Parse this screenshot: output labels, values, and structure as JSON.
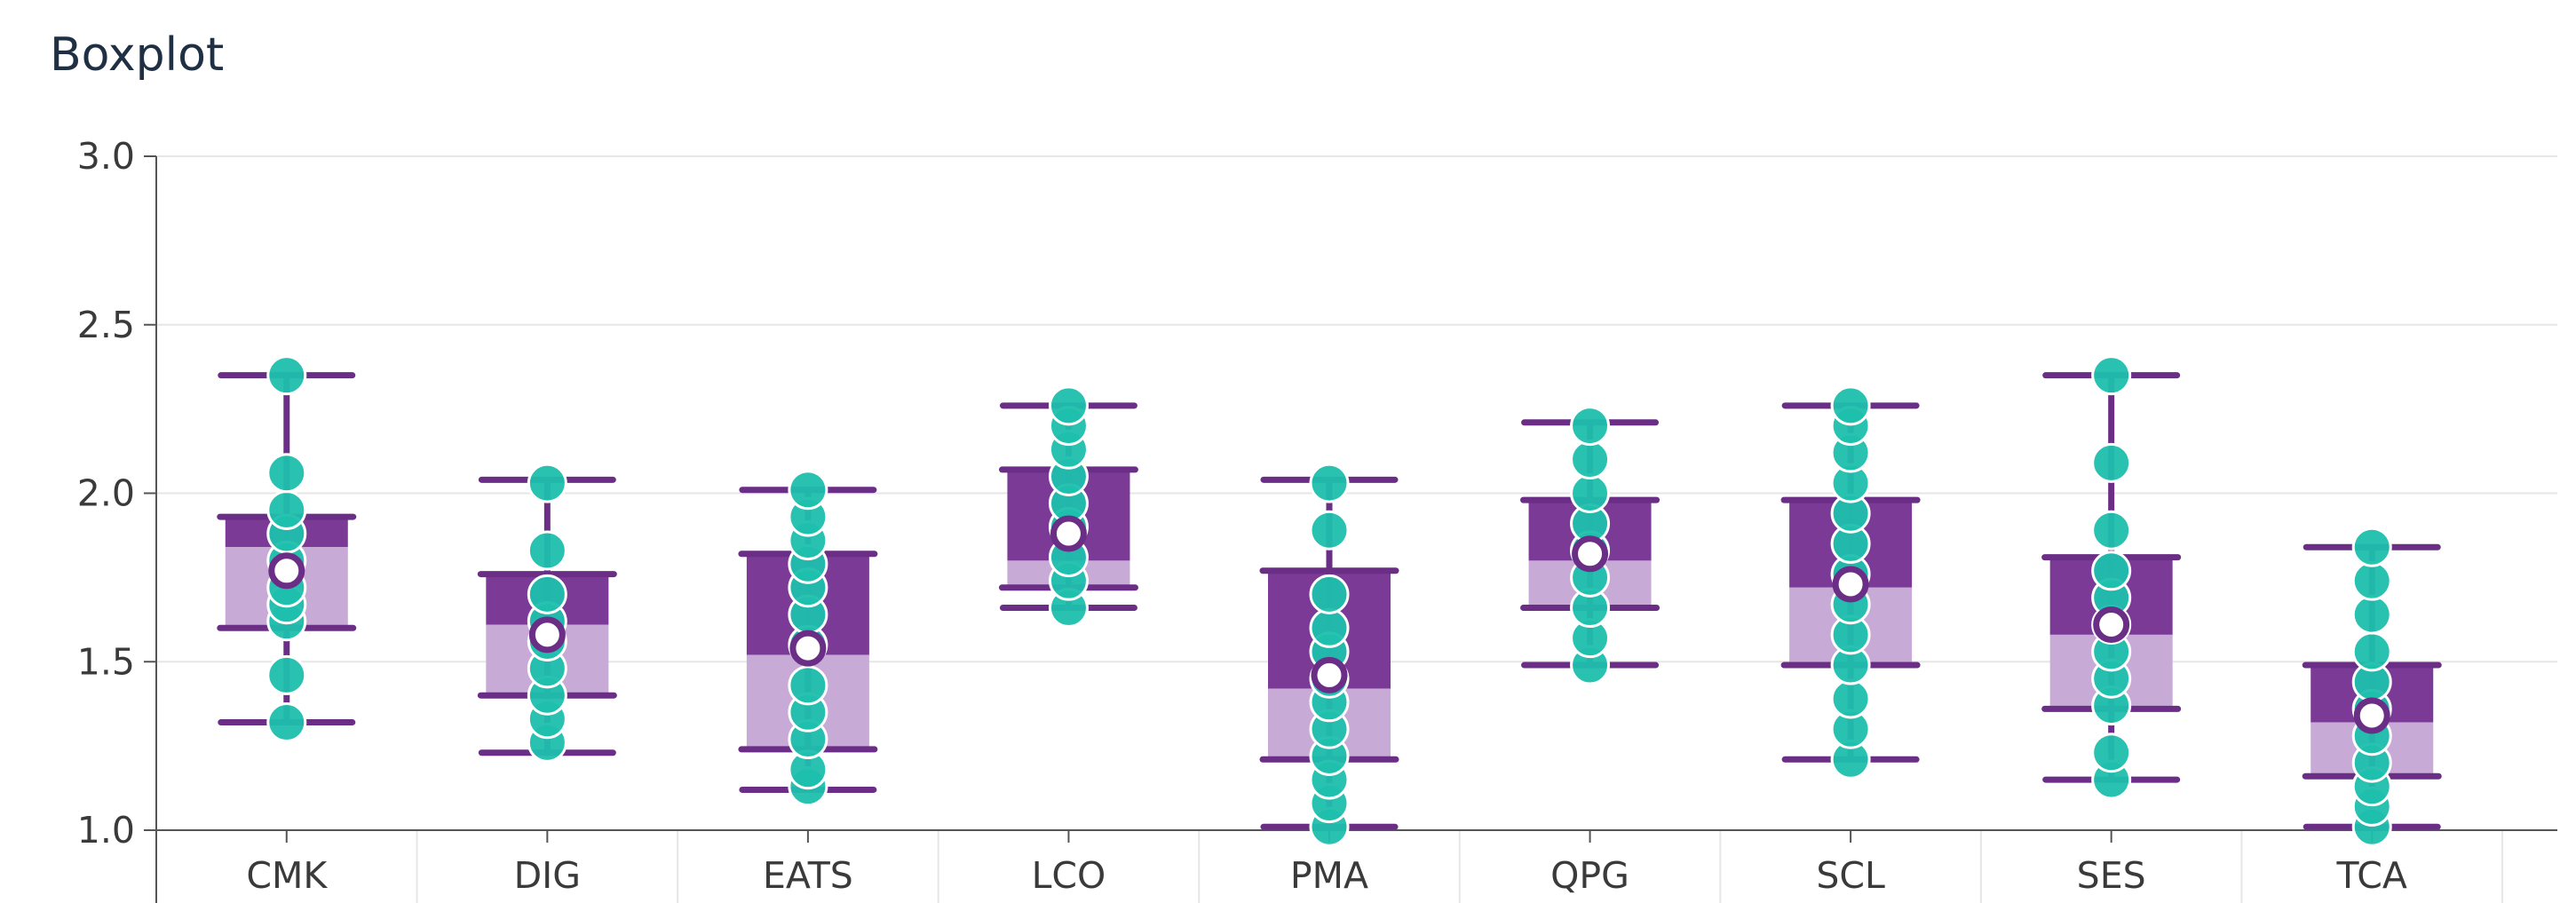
{
  "chart_data": {
    "type": "boxplot",
    "title": "Boxplot",
    "xlabel": "",
    "ylabel": "",
    "ylim": [
      1.0,
      3.0
    ],
    "yticks": [
      "1.0",
      "1.5",
      "2.0",
      "2.5",
      "3.0"
    ],
    "grid": true,
    "categories": [
      "CMK",
      "DIG",
      "EATS",
      "LCO",
      "PMA",
      "QPG",
      "SCL",
      "SES",
      "TCA"
    ],
    "boxes": [
      {
        "category": "CMK",
        "min": 1.32,
        "q1": 1.6,
        "median": 1.84,
        "q3": 1.93,
        "max": 2.35,
        "mean": 1.77,
        "points": [
          1.32,
          1.46,
          1.62,
          1.67,
          1.72,
          1.8,
          1.88,
          1.95,
          2.06,
          2.35
        ]
      },
      {
        "category": "DIG",
        "min": 1.23,
        "q1": 1.4,
        "median": 1.61,
        "q3": 1.76,
        "max": 2.04,
        "mean": 1.58,
        "points": [
          1.26,
          1.33,
          1.4,
          1.48,
          1.56,
          1.62,
          1.7,
          1.83,
          2.03
        ]
      },
      {
        "category": "EATS",
        "min": 1.12,
        "q1": 1.24,
        "median": 1.52,
        "q3": 1.82,
        "max": 2.01,
        "mean": 1.54,
        "points": [
          1.13,
          1.18,
          1.27,
          1.35,
          1.43,
          1.55,
          1.64,
          1.72,
          1.79,
          1.86,
          1.93,
          2.01
        ]
      },
      {
        "category": "LCO",
        "min": 1.66,
        "q1": 1.72,
        "median": 1.8,
        "q3": 2.07,
        "max": 2.26,
        "mean": 1.88,
        "points": [
          1.66,
          1.74,
          1.81,
          1.9,
          1.97,
          2.05,
          2.13,
          2.2,
          2.26
        ]
      },
      {
        "category": "PMA",
        "min": 1.01,
        "q1": 1.21,
        "median": 1.42,
        "q3": 1.77,
        "max": 2.04,
        "mean": 1.46,
        "points": [
          1.01,
          1.08,
          1.15,
          1.22,
          1.3,
          1.38,
          1.45,
          1.53,
          1.6,
          1.7,
          1.89,
          2.03
        ]
      },
      {
        "category": "QPG",
        "min": 1.49,
        "q1": 1.66,
        "median": 1.8,
        "q3": 1.98,
        "max": 2.21,
        "mean": 1.82,
        "points": [
          1.49,
          1.57,
          1.66,
          1.75,
          1.83,
          1.91,
          2.0,
          2.1,
          2.2
        ]
      },
      {
        "category": "SCL",
        "min": 1.21,
        "q1": 1.49,
        "median": 1.72,
        "q3": 1.98,
        "max": 2.26,
        "mean": 1.73,
        "points": [
          1.21,
          1.3,
          1.39,
          1.49,
          1.58,
          1.67,
          1.76,
          1.85,
          1.94,
          2.03,
          2.12,
          2.2,
          2.26
        ]
      },
      {
        "category": "SES",
        "min": 1.15,
        "q1": 1.36,
        "median": 1.58,
        "q3": 1.81,
        "max": 2.35,
        "mean": 1.61,
        "points": [
          1.15,
          1.23,
          1.37,
          1.45,
          1.53,
          1.61,
          1.69,
          1.77,
          1.89,
          2.09,
          2.35
        ]
      },
      {
        "category": "TCA",
        "min": 1.01,
        "q1": 1.16,
        "median": 1.32,
        "q3": 1.49,
        "max": 1.84,
        "mean": 1.34,
        "points": [
          1.01,
          1.07,
          1.13,
          1.2,
          1.28,
          1.36,
          1.44,
          1.53,
          1.64,
          1.74,
          1.84
        ]
      }
    ],
    "colors": {
      "box_upper": "#7a3a96",
      "box_lower": "#c8aad6",
      "whisker": "#6b2e86",
      "points": "#1dbfad",
      "mean_fill": "#ffffff",
      "mean_stroke": "#6b2e86",
      "grid": "#e6e6e6",
      "axis": "#555555"
    }
  }
}
